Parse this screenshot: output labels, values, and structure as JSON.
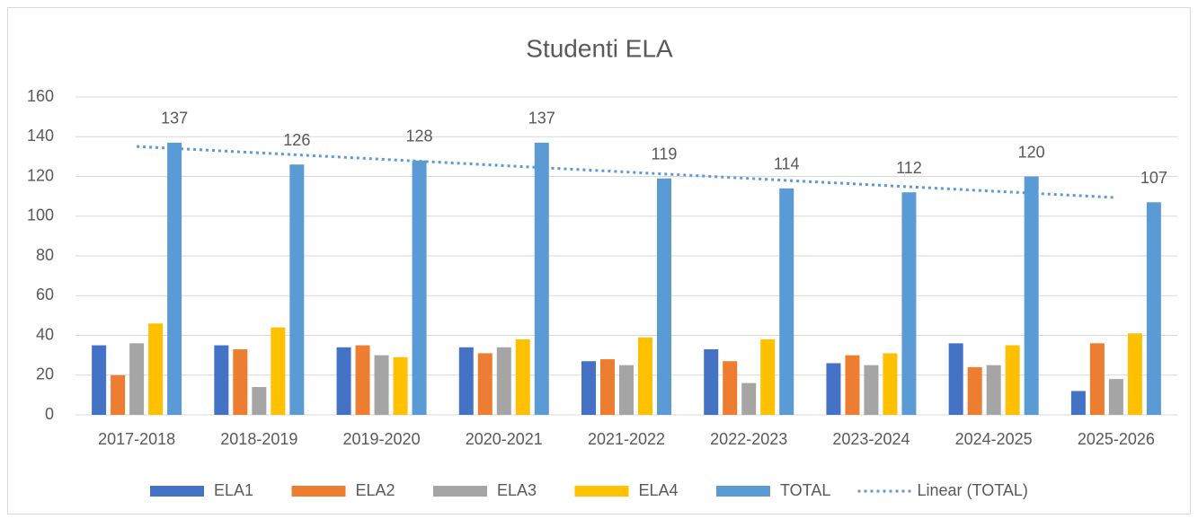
{
  "chart_data": {
    "type": "bar",
    "title": "Studenti ELA",
    "categories": [
      "2017-2018",
      "2018-2019",
      "2019-2020",
      "2020-2021",
      "2021-2022",
      "2022-2023",
      "2023-2024",
      "2024-2025",
      "2025-2026"
    ],
    "series": [
      {
        "name": "ELA1",
        "color": "#4472c4",
        "values": [
          35,
          35,
          34,
          34,
          27,
          33,
          26,
          36,
          12
        ]
      },
      {
        "name": "ELA2",
        "color": "#ed7d31",
        "values": [
          20,
          33,
          35,
          31,
          28,
          27,
          30,
          24,
          36
        ]
      },
      {
        "name": "ELA3",
        "color": "#a5a5a5",
        "values": [
          36,
          14,
          30,
          34,
          25,
          16,
          25,
          25,
          18
        ]
      },
      {
        "name": "ELA4",
        "color": "#ffc000",
        "values": [
          46,
          44,
          29,
          38,
          39,
          38,
          31,
          35,
          41
        ]
      },
      {
        "name": "TOTAL",
        "color": "#5b9bd5",
        "values": [
          137,
          126,
          128,
          137,
          119,
          114,
          112,
          120,
          107
        ],
        "data_labels": true
      }
    ],
    "trendline": {
      "name": "Linear (TOTAL)",
      "color": "#5b9bd5",
      "style": "dotted"
    },
    "ylim": [
      0,
      160
    ],
    "yticks": [
      0,
      20,
      40,
      60,
      80,
      100,
      120,
      140,
      160
    ],
    "grid": true,
    "legend": "bottom"
  }
}
